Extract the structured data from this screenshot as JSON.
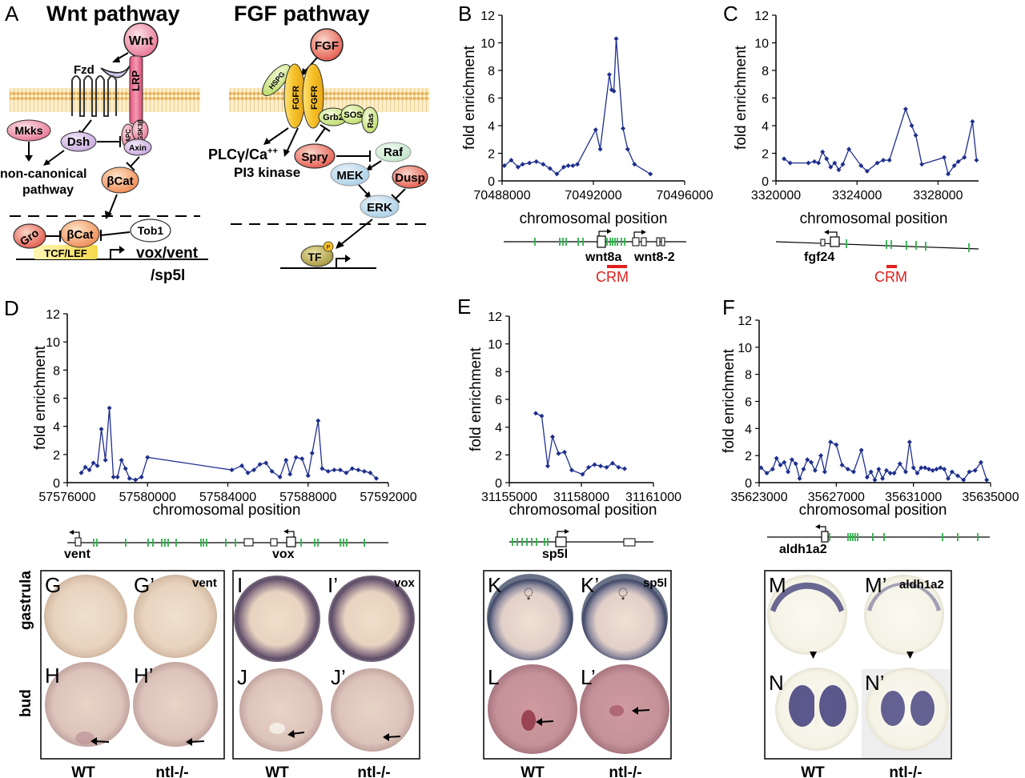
{
  "panel_a": {
    "letter": "A",
    "wnt": {
      "title": "Wnt pathway",
      "wnt": "Wnt",
      "fzd": "Fzd",
      "lrp": "LRP",
      "mkks": "Mkks",
      "dsh": "Dsh",
      "apc": "APC",
      "gsk": "GSK3β",
      "axin": "Axin",
      "bcat": "βCat",
      "noncanonical_1": "non-canonical",
      "noncanonical_2": "pathway",
      "gro": "Gro",
      "bcat_nucleus": "βCat",
      "tob1": "Tob1",
      "tcf": "TCF/LEF",
      "targets_1": "vox/vent",
      "targets_2": "/sp5l"
    },
    "fgf": {
      "title": "FGF pathway",
      "fgf": "FGF",
      "hspg": "HSPG",
      "fgfr": "FGFR",
      "grb2": "Grb2",
      "sos": "SOS",
      "ras": "Ras",
      "spry": "Spry",
      "raf": "Raf",
      "mek": "MEK",
      "erk": "ERK",
      "dusp": "Dusp",
      "plc": "PLCγ/Ca",
      "plc_sup": "++",
      "pi3k": "PI3 kinase",
      "tf": "TF",
      "p": "P"
    }
  },
  "chart_data": [
    {
      "panel": "B",
      "type": "line",
      "ylabel": "fold enrichment",
      "xlabel": "chromosomal position",
      "ylim": [
        0,
        12
      ],
      "yticks": [
        0,
        2,
        4,
        6,
        8,
        10,
        12
      ],
      "xlim": [
        70488000,
        70496000
      ],
      "xticks": [
        "70488000",
        "70492000",
        "70496000"
      ],
      "color": "#1f2f8e",
      "x": [
        70488100,
        70488400,
        70488700,
        70488900,
        70489200,
        70489500,
        70489800,
        70490100,
        70490400,
        70490700,
        70490900,
        70491100,
        70491300,
        70492100,
        70492300,
        70492700,
        70492800,
        70492900,
        70493000,
        70493300,
        70493500,
        70493800,
        70494500
      ],
      "y": [
        1.1,
        1.5,
        1.0,
        1.2,
        1.3,
        1.4,
        1.2,
        0.9,
        0.5,
        1.0,
        1.1,
        1.1,
        1.2,
        3.7,
        2.3,
        7.7,
        6.6,
        6.5,
        10.3,
        3.8,
        2.3,
        1.2,
        0.5
      ]
    },
    {
      "panel": "C",
      "type": "line",
      "ylabel": "fold enrichment",
      "xlabel": "chromosomal position",
      "ylim": [
        0,
        12
      ],
      "yticks": [
        0,
        2,
        4,
        6,
        8,
        10,
        12
      ],
      "xlim": [
        3320000,
        3330000
      ],
      "xticks": [
        "3320000",
        "3324000",
        "3328000"
      ],
      "color": "#1f2f8e",
      "x": [
        3320400,
        3320700,
        3321600,
        3321900,
        3322100,
        3322300,
        3322500,
        3322700,
        3322900,
        3323100,
        3323300,
        3323600,
        3324200,
        3324500,
        3325000,
        3325300,
        3325600,
        3326400,
        3326700,
        3326900,
        3327200,
        3328300,
        3328500,
        3328800,
        3329000,
        3329300,
        3329700,
        3329900
      ],
      "y": [
        1.6,
        1.3,
        1.3,
        1.4,
        1.3,
        2.1,
        1.6,
        1.0,
        1.3,
        0.8,
        1.2,
        2.3,
        1.1,
        0.7,
        1.3,
        1.5,
        1.5,
        5.2,
        4.0,
        3.3,
        1.2,
        1.7,
        0.5,
        1.1,
        1.4,
        1.7,
        4.3,
        1.5
      ]
    },
    {
      "panel": "D",
      "type": "line",
      "ylabel": "fold enrichment",
      "xlabel": "chromosomal position",
      "ylim": [
        0,
        12
      ],
      "yticks": [
        0,
        2,
        4,
        6,
        8,
        10,
        12
      ],
      "xlim": [
        57576000,
        57592000
      ],
      "xticks": [
        "57576000",
        "57580000",
        "57584000",
        "57588000",
        "57592000"
      ],
      "color": "#1f2f8e",
      "x": [
        57576700,
        57576900,
        57577100,
        57577300,
        57577500,
        57577700,
        57577900,
        57578100,
        57578300,
        57578500,
        57578700,
        57578900,
        57579100,
        57579400,
        57579700,
        57580000,
        57584200,
        57584700,
        57585000,
        57585300,
        57585600,
        57585900,
        57586200,
        57586600,
        57586900,
        57587100,
        57587400,
        57587700,
        57588000,
        57588200,
        57588500,
        57588700,
        57589000,
        57589300,
        57589600,
        57589900,
        57590200,
        57590500,
        57590800,
        57591100,
        57591400
      ],
      "y": [
        0.7,
        1.1,
        0.9,
        1.4,
        1.2,
        3.8,
        1.6,
        5.3,
        0.4,
        0.4,
        1.6,
        1.0,
        0.3,
        0.2,
        0.4,
        1.8,
        0.9,
        1.2,
        0.7,
        0.9,
        1.3,
        1.4,
        0.8,
        0.4,
        1.6,
        0.6,
        1.8,
        1.7,
        0.5,
        2.1,
        4.4,
        1.0,
        0.8,
        0.9,
        0.9,
        0.7,
        1.0,
        0.9,
        0.8,
        0.7,
        0.3
      ]
    },
    {
      "panel": "E",
      "type": "line",
      "ylabel": "fold enrichment",
      "xlabel": "chromosomal position",
      "ylim": [
        0,
        12
      ],
      "yticks": [
        0,
        2,
        4,
        6,
        8,
        10,
        12
      ],
      "xlim": [
        31155000,
        31161000
      ],
      "xticks": [
        "31155000",
        "31158000",
        "31161000"
      ],
      "color": "#1f2f8e",
      "x": [
        31156100,
        31156350,
        31156600,
        31156800,
        31157050,
        31157300,
        31157600,
        31158050,
        31158300,
        31158550,
        31158800,
        31159050,
        31159300,
        31159550,
        31159800
      ],
      "y": [
        5.0,
        4.8,
        1.2,
        3.3,
        2.1,
        2.2,
        0.9,
        0.6,
        1.1,
        1.3,
        1.2,
        1.1,
        1.4,
        1.1,
        1.0
      ]
    },
    {
      "panel": "F",
      "type": "line",
      "ylabel": "fold enrichment",
      "xlabel": "chromosomal position",
      "ylim": [
        0,
        12
      ],
      "yticks": [
        0,
        2,
        4,
        6,
        8,
        10,
        12
      ],
      "xlim": [
        35623000,
        35635000
      ],
      "xticks": [
        "35623000",
        "35627000",
        "35631000",
        "35635000"
      ],
      "color": "#1f2f8e",
      "x": [
        35623100,
        35623400,
        35623700,
        35623900,
        35624100,
        35624300,
        35624500,
        35624700,
        35624900,
        35625100,
        35625300,
        35625500,
        35625700,
        35625900,
        35626200,
        35626400,
        35626700,
        35627000,
        35627300,
        35627600,
        35627900,
        35628300,
        35628600,
        35628800,
        35629000,
        35629200,
        35629400,
        35629600,
        35629800,
        35630000,
        35630300,
        35630600,
        35630800,
        35631000,
        35631200,
        35631400,
        35631600,
        35631800,
        35632000,
        35632200,
        35632400,
        35632600,
        35632800,
        35633000,
        35633300,
        35633600,
        35633900,
        35634200,
        35634500,
        35634800
      ],
      "y": [
        1.1,
        0.7,
        1.0,
        1.8,
        1.3,
        1.5,
        0.8,
        1.7,
        1.4,
        0.3,
        1.0,
        1.7,
        1.5,
        0.9,
        2.0,
        0.8,
        3.0,
        2.8,
        1.3,
        1.0,
        0.8,
        2.4,
        0.4,
        0.8,
        0.2,
        1.0,
        0.3,
        0.9,
        0.7,
        0.7,
        1.4,
        0.8,
        3.0,
        1.1,
        0.7,
        1.1,
        1.1,
        1.0,
        0.9,
        1.0,
        1.1,
        1.0,
        0.3,
        0.8,
        0.5,
        0.2,
        0.8,
        0.9,
        1.5,
        0.2
      ]
    }
  ],
  "gene_tracks": {
    "b": {
      "labels": [
        "wnt8a",
        "wnt8-2"
      ],
      "crm": "CRM"
    },
    "c": {
      "labels": [
        "fgf24"
      ],
      "crm": "CRM"
    },
    "d": {
      "labels": [
        "vent",
        "vox"
      ]
    },
    "e": {
      "labels": [
        "sp5l"
      ]
    },
    "f": {
      "labels": [
        "aldh1a2"
      ]
    }
  },
  "photos": {
    "row_labels": [
      "gastrula",
      "bud"
    ],
    "genotypes": [
      "WT",
      "ntl-/-"
    ],
    "groups": [
      {
        "genes": "vent",
        "letters": [
          "G",
          "G’",
          "H",
          "H’"
        ]
      },
      {
        "genes": "vox",
        "letters": [
          "I",
          "I’",
          "J",
          "J’"
        ]
      },
      {
        "genes": "sp5l",
        "letters": [
          "K",
          "K’",
          "L",
          "L’"
        ]
      },
      {
        "genes": "aldh1a2",
        "letters": [
          "M",
          "M’",
          "N",
          "N’"
        ]
      }
    ]
  }
}
